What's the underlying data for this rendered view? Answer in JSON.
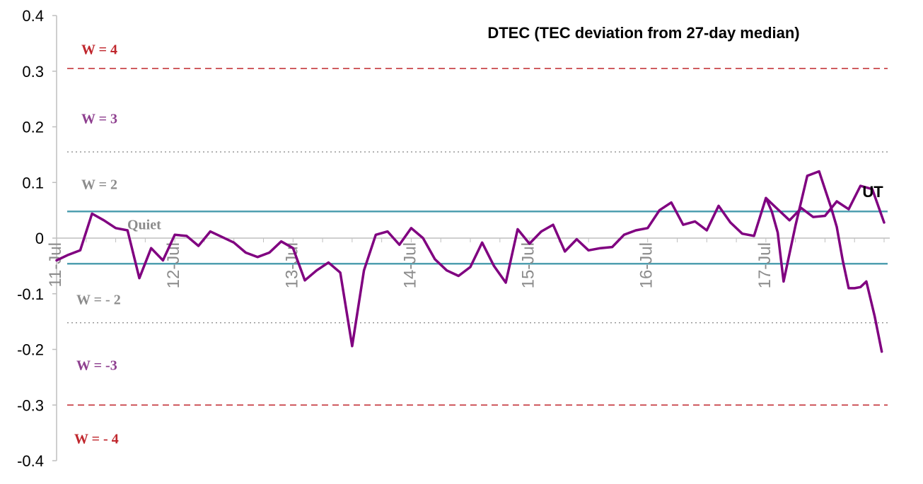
{
  "chart_data": {
    "type": "line",
    "title": "DTEC (TEC deviation from 27-day median)",
    "xlabel": "UT",
    "ylabel": "",
    "ylim": [
      -0.4,
      0.4
    ],
    "yticks": [
      "0.4",
      "0.3",
      "0.2",
      "0.1",
      "0",
      "-0.1",
      "-0.2",
      "-0.3",
      "-0.4"
    ],
    "x_tick_labels": [
      "11-Jul",
      "12-Jul",
      "13-Jul",
      "14-Jul",
      "15-Jul",
      "16-Jul",
      "17-Jul"
    ],
    "x_range_days": [
      0,
      7
    ],
    "series": [
      {
        "color": "#800080",
        "x": [
          0.0,
          0.1,
          0.2,
          0.3,
          0.4,
          0.5,
          0.6,
          0.7,
          0.8,
          0.9,
          1.0,
          1.1,
          1.2,
          1.3,
          1.4,
          1.5,
          1.6,
          1.7,
          1.8,
          1.9,
          2.0,
          2.1,
          2.2,
          2.3,
          2.4,
          2.5,
          2.6,
          2.7,
          2.8,
          2.9,
          3.0,
          3.1,
          3.2,
          3.3,
          3.4,
          3.5,
          3.6,
          3.7,
          3.8,
          3.9,
          4.0,
          4.1,
          4.2,
          4.3,
          4.4,
          4.5,
          4.6,
          4.7,
          4.8,
          4.9,
          5.0,
          5.1,
          5.2,
          5.3,
          5.4,
          5.5,
          5.6,
          5.7,
          5.8,
          5.9,
          6.0,
          6.1,
          6.2,
          6.3,
          6.4,
          6.5,
          6.6,
          6.7,
          6.8,
          6.9,
          7.0
        ],
        "y": [
          -0.04,
          -0.03,
          -0.022,
          0.044,
          0.032,
          0.018,
          0.014,
          -0.072,
          -0.018,
          -0.04,
          0.006,
          0.004,
          -0.014,
          0.012,
          0.002,
          -0.008,
          -0.026,
          -0.034,
          -0.026,
          -0.006,
          -0.018,
          -0.076,
          -0.058,
          -0.044,
          -0.062,
          -0.194,
          -0.058,
          0.006,
          0.012,
          -0.012,
          0.018,
          0.0,
          -0.038,
          -0.058,
          -0.068,
          -0.052,
          -0.008,
          -0.05,
          -0.08,
          0.016,
          -0.01,
          0.012,
          0.024,
          -0.024,
          -0.002,
          -0.022,
          -0.018,
          -0.016,
          0.006,
          0.014,
          0.018,
          0.05,
          0.064,
          0.024,
          0.03,
          0.014,
          0.058,
          0.028,
          0.008,
          0.004,
          0.072,
          0.052,
          0.032,
          0.054,
          0.038,
          0.04,
          0.066,
          0.052,
          0.094,
          0.088,
          0.028
        ]
      },
      {
        "color": "#800080",
        "x": [
          6.0,
          6.05,
          6.1,
          6.15,
          6.25,
          6.35,
          6.45,
          6.5,
          6.55,
          6.6,
          6.65,
          6.7,
          6.75,
          6.8,
          6.85,
          6.92,
          6.98
        ],
        "y": [
          0.072,
          0.048,
          0.01,
          -0.078,
          0.022,
          0.112,
          0.12,
          0.088,
          0.056,
          0.02,
          -0.04,
          -0.09,
          -0.09,
          -0.088,
          -0.078,
          -0.14,
          -0.204
        ]
      }
    ],
    "reference_lines": [
      {
        "y": 0.305,
        "style": "dashed",
        "color": "#c0272d"
      },
      {
        "y": 0.155,
        "style": "dotted",
        "color": "#999999"
      },
      {
        "y": 0.048,
        "style": "solid",
        "color": "#4f9fb0"
      },
      {
        "y": -0.046,
        "style": "solid",
        "color": "#4f9fb0"
      },
      {
        "y": -0.152,
        "style": "dotted",
        "color": "#999999"
      },
      {
        "y": -0.3,
        "style": "dashed",
        "color": "#c0272d"
      }
    ],
    "annotations": [
      {
        "text": "W = 4",
        "y": 0.34,
        "color": "#c0272d"
      },
      {
        "text": "W = 3",
        "y": 0.215,
        "color": "#8e3f8f"
      },
      {
        "text": "W = 2",
        "y": 0.097,
        "color": "#8c8c8c"
      },
      {
        "text": "Quiet",
        "y": 0.025,
        "color": "#8c8c8c"
      },
      {
        "text": "W = - 2",
        "y": -0.11,
        "color": "#8c8c8c"
      },
      {
        "text": "W = -3",
        "y": -0.228,
        "color": "#8e3f8f"
      },
      {
        "text": "W = - 4",
        "y": -0.36,
        "color": "#c0272d"
      }
    ],
    "grid": false,
    "legend": "none"
  }
}
